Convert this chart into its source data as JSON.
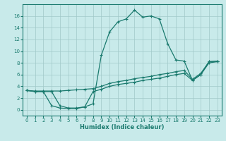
{
  "xlabel": "Humidex (Indice chaleur)",
  "ylabel": "",
  "bg_color": "#c8eaea",
  "grid_color": "#a0c8c8",
  "line_color": "#1a7a6e",
  "xlim": [
    -0.5,
    23.5
  ],
  "ylim": [
    -1,
    18
  ],
  "xticks": [
    0,
    1,
    2,
    3,
    4,
    5,
    6,
    7,
    8,
    9,
    10,
    11,
    12,
    13,
    14,
    15,
    16,
    17,
    18,
    19,
    20,
    21,
    22,
    23
  ],
  "yticks": [
    0,
    2,
    4,
    6,
    8,
    10,
    12,
    14,
    16
  ],
  "line1_x": [
    0,
    1,
    2,
    3,
    4,
    5,
    6,
    7,
    8,
    9,
    10,
    11,
    12,
    13,
    14,
    15,
    16,
    17,
    18,
    19,
    20,
    21,
    22,
    23
  ],
  "line1_y": [
    3.3,
    3.1,
    3.1,
    3.1,
    0.7,
    0.3,
    0.3,
    0.5,
    1.0,
    9.3,
    13.3,
    15.0,
    15.5,
    17.0,
    15.8,
    16.0,
    15.5,
    11.3,
    8.5,
    8.3,
    5.0,
    6.0,
    8.2,
    8.3
  ],
  "line2_x": [
    0,
    1,
    2,
    3,
    4,
    5,
    6,
    7,
    8,
    9,
    10,
    11,
    12,
    13,
    14,
    15,
    16,
    17,
    18,
    19,
    20,
    21,
    22,
    23
  ],
  "line2_y": [
    3.3,
    3.2,
    3.2,
    3.2,
    3.2,
    3.3,
    3.4,
    3.5,
    3.6,
    4.0,
    4.5,
    4.8,
    5.0,
    5.3,
    5.5,
    5.7,
    6.0,
    6.2,
    6.5,
    6.7,
    5.2,
    6.2,
    8.2,
    8.3
  ],
  "line3_x": [
    0,
    1,
    2,
    3,
    4,
    5,
    6,
    7,
    8,
    9,
    10,
    11,
    12,
    13,
    14,
    15,
    16,
    17,
    18,
    19,
    20,
    21,
    22,
    23
  ],
  "line3_y": [
    3.3,
    3.1,
    3.1,
    0.7,
    0.3,
    0.2,
    0.2,
    0.5,
    3.1,
    3.5,
    4.0,
    4.3,
    4.5,
    4.7,
    5.0,
    5.2,
    5.4,
    5.7,
    6.0,
    6.2,
    5.0,
    6.0,
    8.0,
    8.2
  ],
  "marker": "+",
  "markersize": 3,
  "linewidth": 0.9
}
